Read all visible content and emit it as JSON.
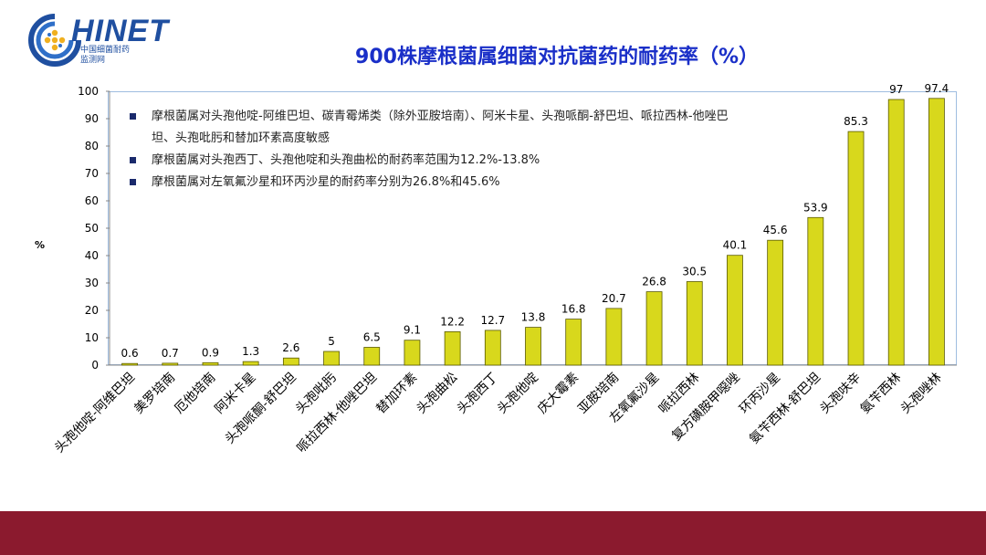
{
  "logo": {
    "title": "HINET",
    "subtitle_line1": "中国细菌耐药",
    "subtitle_line2": "监测网"
  },
  "colors": {
    "bar": "#d8d81c",
    "bar_edge": "#5a5a00",
    "title": "#1a2fc8",
    "footer": "#8b1a2e",
    "logo": "#1f4fa0"
  },
  "notes": [
    "摩根菌属对头孢他啶-阿维巴坦、碳青霉烯类（除外亚胺培南）、阿米卡星、头孢哌酮-舒巴坦、哌拉西林-他唑巴坦、头孢吡肟和替加环素高度敏感",
    "摩根菌属对头孢西丁、头孢他啶和头孢曲松的耐药率范围为12.2%-13.8%",
    "摩根菌属对左氧氟沙星和环丙沙星的耐药率分别为26.8%和45.6%"
  ],
  "chart_data": {
    "type": "bar",
    "title": "900株摩根菌属细菌对抗菌药的耐药率（%）",
    "ylabel": "%",
    "xlabel": "",
    "ylim": [
      0,
      100
    ],
    "yticks": [
      0,
      10,
      20,
      30,
      40,
      50,
      60,
      70,
      80,
      90,
      100
    ],
    "grid": false,
    "categories": [
      "头孢他啶-阿维巴坦",
      "美罗培南",
      "厄他培南",
      "阿米卡星",
      "头孢哌酮-舒巴坦",
      "头孢吡肟",
      "哌拉西林-他唑巴坦",
      "替加环素",
      "头孢曲松",
      "头孢西丁",
      "头孢他啶",
      "庆大霉素",
      "亚胺培南",
      "左氧氟沙星",
      "哌拉西林",
      "复方磺胺甲噁唑",
      "环丙沙星",
      "氨苄西林-舒巴坦",
      "头孢呋辛",
      "氨苄西林",
      "头孢唑林"
    ],
    "values": [
      0.6,
      0.7,
      0.9,
      1.3,
      2.6,
      5,
      6.5,
      9.1,
      12.2,
      12.7,
      13.8,
      16.8,
      20.7,
      26.8,
      30.5,
      40.1,
      45.6,
      53.9,
      85.3,
      97,
      97.4
    ],
    "data_labels": [
      "0.6",
      "0.7",
      "0.9",
      "1.3",
      "2.6",
      "5",
      "6.5",
      "9.1",
      "12.2",
      "12.7",
      "13.8",
      "16.8",
      "20.7",
      "26.8",
      "30.5",
      "40.1",
      "45.6",
      "53.9",
      "85.3",
      "97",
      "97.4"
    ]
  }
}
